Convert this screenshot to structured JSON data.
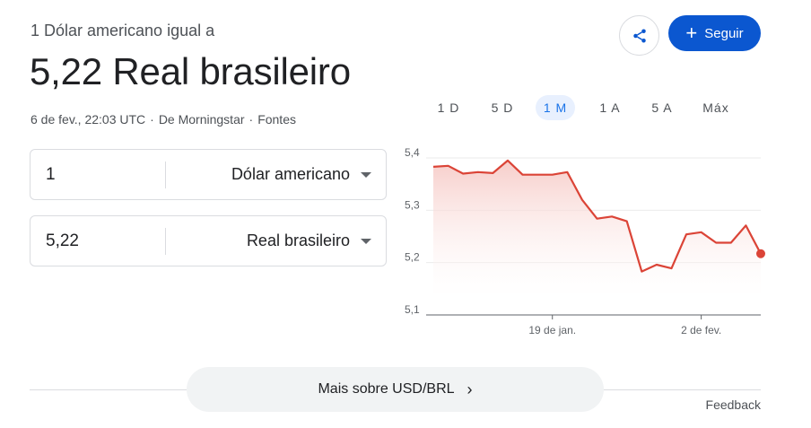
{
  "header": {
    "subtitle": "1 Dólar americano igual a",
    "value": "5,22 Real brasileiro",
    "date": "6 de fev., 22:03 UTC",
    "source": "De Morningstar",
    "sources_link": "Fontes"
  },
  "actions": {
    "share_icon": "share-icon",
    "follow_label": "Seguir"
  },
  "converter": {
    "from": {
      "amount": "1",
      "currency": "Dólar americano"
    },
    "to": {
      "amount": "5,22",
      "currency": "Real brasileiro"
    }
  },
  "ranges": [
    "1 D",
    "5 D",
    "1 M",
    "1 A",
    "5 A",
    "Máx"
  ],
  "active_range": "1 M",
  "chart_data": {
    "type": "area",
    "y_ticks": [
      "5,4",
      "5,3",
      "5,2",
      "5,1"
    ],
    "ylim": [
      5.1,
      5.4
    ],
    "x_ticks": [
      {
        "label": "19 de jan.",
        "index": 8
      },
      {
        "label": "2 de fev.",
        "index": 18
      }
    ],
    "values": [
      5.383,
      5.385,
      5.37,
      5.373,
      5.371,
      5.395,
      5.368,
      5.368,
      5.368,
      5.373,
      5.32,
      5.284,
      5.288,
      5.279,
      5.183,
      5.196,
      5.189,
      5.254,
      5.258,
      5.238,
      5.238,
      5.271,
      5.217
    ],
    "line_color": "#db4437",
    "grid": true
  },
  "footer": {
    "more_label": "Mais sobre USD/BRL",
    "feedback_label": "Feedback"
  }
}
